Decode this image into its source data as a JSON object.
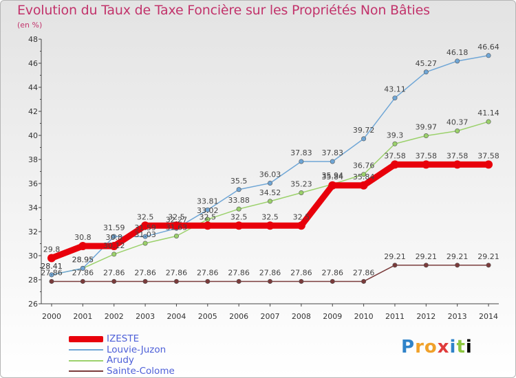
{
  "chart_data": {
    "type": "line",
    "title": "Evolution du Taux de Taxe Foncière sur les Propriétés Non Bâties",
    "subtitle": "(en %)",
    "x": [
      "2000",
      "2001",
      "2002",
      "2003",
      "2004",
      "2005",
      "2006",
      "2007",
      "2008",
      "2009",
      "2010",
      "2011",
      "2012",
      "2013",
      "2014"
    ],
    "ylim": [
      26,
      48
    ],
    "yticks": [
      "26",
      "28",
      "30",
      "32",
      "34",
      "36",
      "38",
      "40",
      "42",
      "44",
      "46",
      "48"
    ],
    "grid": false,
    "legend_position": "bottom-left",
    "series": [
      {
        "name": "IZESTE",
        "color": "#e8000b",
        "values": [
          29.8,
          30.8,
          30.8,
          32.5,
          32.5,
          32.5,
          32.5,
          32.5,
          32.5,
          35.84,
          35.84,
          37.58,
          37.58,
          37.58,
          37.58
        ],
        "labels": [
          "29.8",
          "30.8",
          "30.8",
          "32.5",
          "32.5",
          "32.5",
          "32.5",
          "32.5",
          "32.5",
          "35.84",
          "35.84",
          "37.58",
          "37.58",
          "37.58",
          "37.58"
        ]
      },
      {
        "name": "Louvie-Juzon",
        "color": "#6fa6d6",
        "values": [
          28.41,
          28.95,
          31.59,
          31.59,
          32.27,
          33.81,
          35.5,
          36.03,
          37.83,
          37.83,
          39.72,
          43.11,
          45.27,
          46.18,
          46.64
        ],
        "labels": [
          "28.41",
          "28.95",
          "31.59",
          "31.59",
          "32.27",
          "33.81",
          "35.5",
          "36.03",
          "37.83",
          "37.83",
          "39.72",
          "43.11",
          "45.27",
          "46.18",
          "46.64"
        ]
      },
      {
        "name": "Arudy",
        "color": "#9bd16b",
        "values": [
          28.41,
          28.95,
          30.12,
          31.03,
          31.63,
          33.02,
          33.88,
          34.52,
          35.23,
          35.94,
          36.76,
          39.3,
          39.97,
          40.37,
          41.14
        ],
        "labels": [
          "28.41",
          "28.95",
          "30.12",
          "31.03",
          "31.63",
          "33.02",
          "33.88",
          "34.52",
          "35.23",
          "35.94",
          "36.76",
          "39.3",
          "39.97",
          "40.37",
          "41.14"
        ]
      },
      {
        "name": "Sainte-Colome",
        "color": "#7a3b3b",
        "values": [
          27.86,
          27.86,
          27.86,
          27.86,
          27.86,
          27.86,
          27.86,
          27.86,
          27.86,
          27.86,
          27.86,
          29.21,
          29.21,
          29.21,
          29.21
        ],
        "labels": [
          "27.86",
          "27.86",
          "27.86",
          "27.86",
          "27.86",
          "27.86",
          "27.86",
          "27.86",
          "27.86",
          "27.86",
          "27.86",
          "29.21",
          "29.21",
          "29.21",
          "29.21"
        ]
      }
    ]
  },
  "logo": {
    "letters": [
      "P",
      "r",
      "o",
      "x",
      "i",
      "t",
      "i"
    ]
  }
}
